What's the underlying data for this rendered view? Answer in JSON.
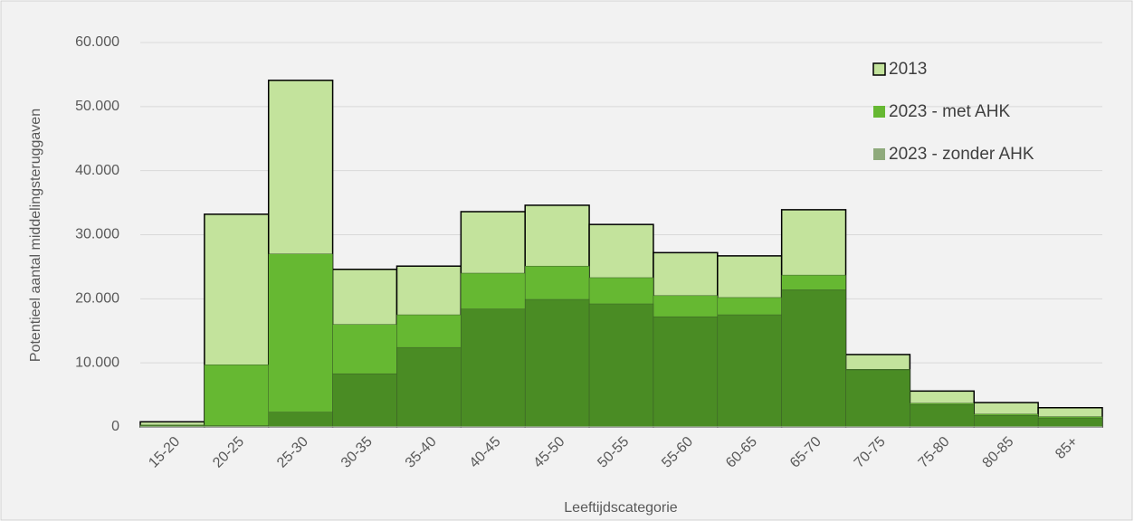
{
  "chart_data": {
    "type": "bar",
    "overlap": true,
    "xlabel": "Leeftijdscategorie",
    "ylabel": "Potentieel aantal middelingsteruggaven",
    "categories": [
      "15-20",
      "20-25",
      "25-30",
      "30-35",
      "35-40",
      "40-45",
      "45-50",
      "50-55",
      "55-60",
      "60-65",
      "65-70",
      "70-75",
      "75-80",
      "80-85",
      "85+"
    ],
    "series": [
      {
        "name": "2013",
        "color": "#c3e39c",
        "outline": "#000000",
        "values": [
          800,
          33200,
          54100,
          24600,
          25100,
          33600,
          34600,
          31600,
          27200,
          26700,
          33900,
          11300,
          5600,
          3800,
          3000
        ]
      },
      {
        "name": "2023 - met AHK",
        "color": "#66b832",
        "values": [
          300,
          9700,
          27000,
          16000,
          17500,
          24000,
          25100,
          23300,
          20500,
          20200,
          23700,
          9000,
          3700,
          2000,
          1600
        ]
      },
      {
        "name": "2023 - zonder AHK",
        "color": "#4a8c24",
        "legend_color": "#8faa7c",
        "values": [
          200,
          200,
          2300,
          8300,
          12400,
          18400,
          19900,
          19200,
          17200,
          17500,
          21400,
          8900,
          3500,
          1800,
          1400
        ]
      }
    ],
    "ylim": [
      0,
      60000
    ],
    "yticks": [
      0,
      {
        "value": 10000,
        "label": "10.000"
      },
      {
        "value": 20000,
        "label": "20.000"
      },
      {
        "value": 30000,
        "label": "30.000"
      },
      {
        "value": 40000,
        "label": "40.000"
      },
      {
        "value": 50000,
        "label": "50.000"
      },
      {
        "value": 60000,
        "label": "60.000"
      }
    ],
    "grid": true,
    "legend": "upper right"
  }
}
